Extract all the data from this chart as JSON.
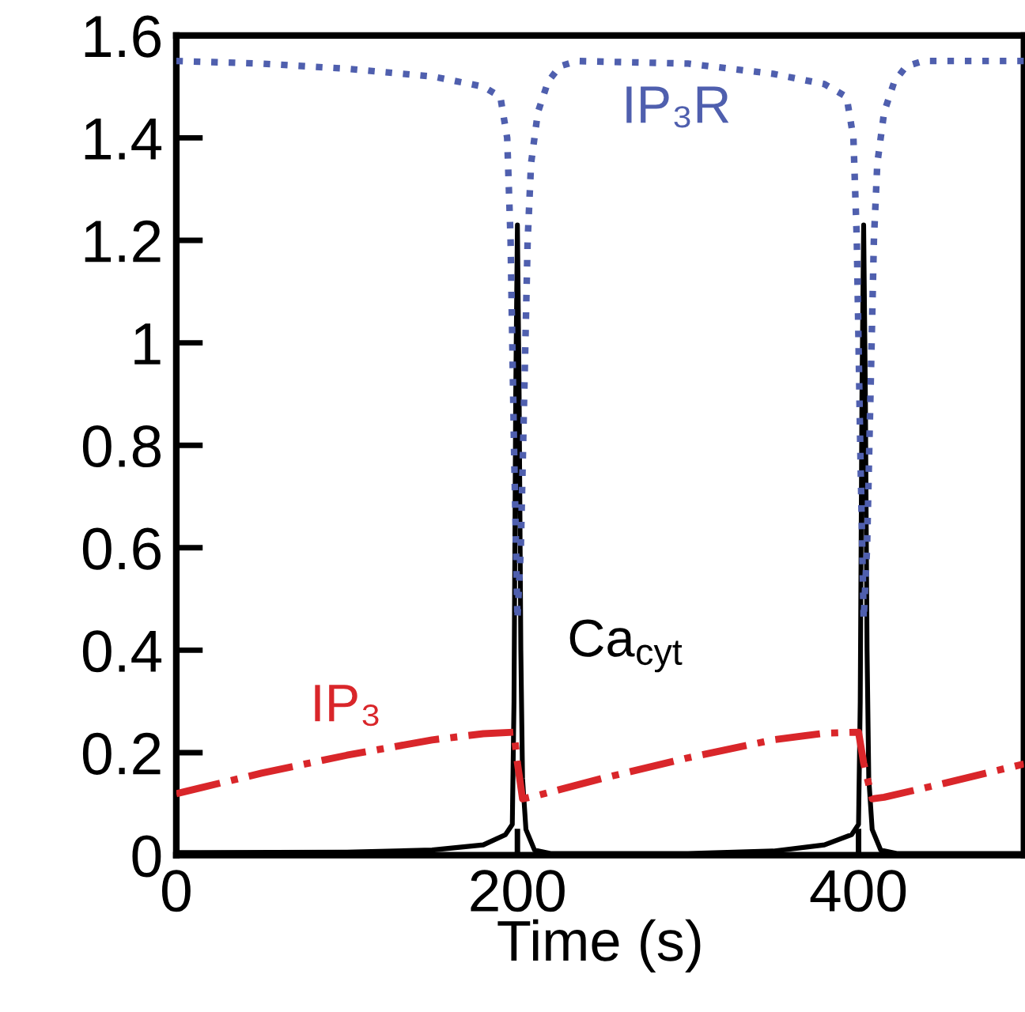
{
  "chart_data": {
    "type": "line",
    "xlabel": "Time (s)",
    "xlim": [
      0,
      497
    ],
    "ylim": [
      0,
      1.6
    ],
    "xticks": [
      0,
      200,
      400
    ],
    "yticks": [
      0,
      0.2,
      0.4,
      0.6,
      0.8,
      1,
      1.2,
      1.4,
      1.6
    ],
    "series": [
      {
        "name": "IP₃R",
        "color": "#4f5fae",
        "line_style": "dotted",
        "x": [
          0,
          50,
          100,
          150,
          180,
          190,
          194,
          196,
          198,
          200,
          202,
          204,
          206,
          208,
          212,
          218,
          225,
          235,
          300,
          350,
          380,
          393,
          397,
          399,
          401,
          403,
          405,
          407,
          409,
          411,
          415,
          421,
          428,
          438,
          497
        ],
        "values": [
          1.55,
          1.545,
          1.535,
          1.52,
          1.5,
          1.48,
          1.4,
          1.2,
          0.8,
          0.46,
          0.6,
          0.9,
          1.2,
          1.35,
          1.45,
          1.51,
          1.54,
          1.55,
          1.545,
          1.525,
          1.505,
          1.48,
          1.4,
          1.2,
          0.8,
          0.46,
          0.6,
          0.9,
          1.2,
          1.35,
          1.45,
          1.51,
          1.54,
          1.55,
          1.55
        ]
      },
      {
        "name": "Ca$_{cyt}$",
        "color": "#000000",
        "line_style": "solid",
        "x": [
          0,
          100,
          150,
          180,
          193,
          197,
          198,
          199,
          200,
          201,
          202,
          203,
          205,
          210,
          220,
          300,
          350,
          380,
          396,
          400,
          401,
          402,
          403,
          404,
          405,
          406,
          408,
          413,
          423,
          497
        ],
        "values": [
          0.005,
          0.006,
          0.01,
          0.02,
          0.04,
          0.06,
          0.3,
          0.9,
          1.23,
          0.9,
          0.4,
          0.15,
          0.05,
          0.01,
          0.003,
          0.003,
          0.008,
          0.02,
          0.04,
          0.06,
          0.3,
          0.9,
          1.23,
          0.9,
          0.4,
          0.15,
          0.05,
          0.01,
          0.003,
          0.003
        ]
      },
      {
        "name": "IP₃",
        "color": "#d9262a",
        "line_style": "dashdot",
        "x": [
          0,
          50,
          100,
          150,
          180,
          198,
          200,
          203,
          210,
          250,
          300,
          350,
          380,
          400,
          403,
          408,
          415,
          450,
          497
        ],
        "values": [
          0.12,
          0.16,
          0.195,
          0.225,
          0.237,
          0.24,
          0.18,
          0.11,
          0.115,
          0.15,
          0.19,
          0.225,
          0.238,
          0.24,
          0.18,
          0.11,
          0.113,
          0.14,
          0.178
        ]
      }
    ]
  }
}
